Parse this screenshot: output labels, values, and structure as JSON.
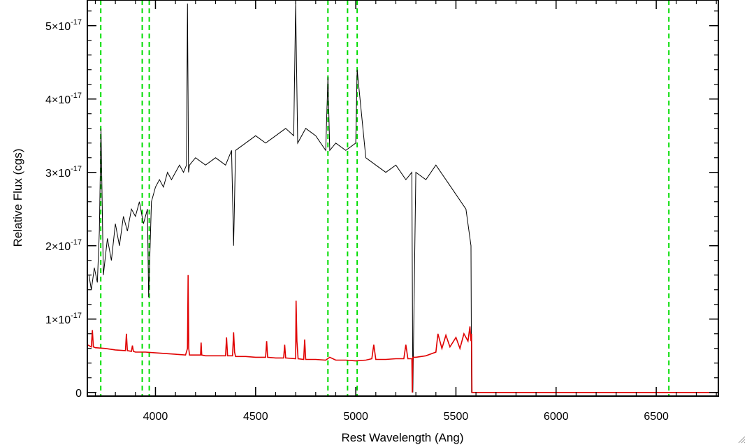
{
  "chart_data": {
    "type": "line",
    "title": "",
    "xlabel": "Rest Wavelength (Ang)",
    "ylabel": "Relative Flux (cgs)",
    "xlim": [
      3660,
      6810
    ],
    "ylim": [
      -5e-19,
      5.35e-17
    ],
    "x_ticks": [
      {
        "value": 4000,
        "label": "4000"
      },
      {
        "value": 4500,
        "label": "4500"
      },
      {
        "value": 5000,
        "label": "5000"
      },
      {
        "value": 5500,
        "label": "5500"
      },
      {
        "value": 6000,
        "label": "6000"
      },
      {
        "value": 6500,
        "label": "6500"
      }
    ],
    "y_ticks": [
      {
        "value": 0,
        "mant": "0",
        "exp": ""
      },
      {
        "value": 1e-17,
        "mant": "1×10",
        "exp": "-17"
      },
      {
        "value": 2e-17,
        "mant": "2×10",
        "exp": "-17"
      },
      {
        "value": 3e-17,
        "mant": "3×10",
        "exp": "-17"
      },
      {
        "value": 4e-17,
        "mant": "4×10",
        "exp": "-17"
      },
      {
        "value": 5e-17,
        "mant": "5×10",
        "exp": "-17"
      }
    ],
    "x_minor_step": 100,
    "y_minor_step": 2e-18,
    "grid": false,
    "vlines": {
      "color": "#00dd00",
      "style": "dashed",
      "x": [
        3727,
        3934,
        3969,
        4861,
        4959,
        5007,
        6563
      ]
    },
    "series": [
      {
        "color": "#000000",
        "x": [
          3668,
          3680,
          3695,
          3710,
          3720,
          3728,
          3740,
          3760,
          3780,
          3800,
          3820,
          3840,
          3860,
          3880,
          3900,
          3920,
          3940,
          3960,
          3966,
          3980,
          4000,
          4020,
          4040,
          4060,
          4080,
          4100,
          4120,
          4140,
          4155,
          4160,
          4165,
          4170,
          4200,
          4250,
          4300,
          4350,
          4380,
          4390,
          4400,
          4450,
          4500,
          4550,
          4600,
          4650,
          4690,
          4700,
          4710,
          4750,
          4800,
          4850,
          4861,
          4870,
          4900,
          4950,
          5000,
          5007,
          5050,
          5100,
          5150,
          5200,
          5250,
          5280,
          5285,
          5300,
          5350,
          5400,
          5450,
          5500,
          5550,
          5575,
          5578,
          5580,
          6810
        ],
        "y": [
          1.6e-17,
          1.4e-17,
          1.7e-17,
          1.5e-17,
          2.2e-17,
          3.6e-17,
          1.6e-17,
          2.1e-17,
          1.8e-17,
          2.3e-17,
          2e-17,
          2.4e-17,
          2.2e-17,
          2.5e-17,
          2.4e-17,
          2.6e-17,
          2.3e-17,
          2.5e-17,
          1.3e-17,
          2.6e-17,
          2.8e-17,
          2.9e-17,
          2.8e-17,
          3e-17,
          2.9e-17,
          3e-17,
          3.1e-17,
          3e-17,
          3.1e-17,
          5.3e-17,
          3e-17,
          3.1e-17,
          3.2e-17,
          3.1e-17,
          3.2e-17,
          3.1e-17,
          3.3e-17,
          2e-17,
          3.3e-17,
          3.4e-17,
          3.5e-17,
          3.4e-17,
          3.5e-17,
          3.6e-17,
          3.5e-17,
          5.3e-17,
          3.4e-17,
          3.6e-17,
          3.5e-17,
          3.3e-17,
          4.3e-17,
          3.3e-17,
          3.4e-17,
          3.3e-17,
          3.4e-17,
          4.4e-17,
          3.2e-17,
          3.1e-17,
          3e-17,
          3.1e-17,
          2.9e-17,
          3e-17,
          0.0,
          3e-17,
          2.9e-17,
          3.1e-17,
          2.9e-17,
          2.7e-17,
          2.5e-17,
          2e-17,
          0.0,
          0.0,
          0.0
        ]
      },
      {
        "color": "#e00000",
        "x": [
          3660,
          3680,
          3685,
          3690,
          3700,
          3750,
          3800,
          3850,
          3855,
          3860,
          3880,
          3885,
          3890,
          3900,
          3950,
          4000,
          4050,
          4100,
          4150,
          4160,
          4163,
          4166,
          4170,
          4200,
          4225,
          4228,
          4231,
          4250,
          4300,
          4350,
          4355,
          4360,
          4385,
          4390,
          4395,
          4400,
          4450,
          4500,
          4550,
          4555,
          4560,
          4600,
          4640,
          4645,
          4650,
          4700,
          4702,
          4706,
          4712,
          4740,
          4745,
          4750,
          4800,
          4850,
          4870,
          4900,
          4950,
          5000,
          5050,
          5080,
          5090,
          5100,
          5150,
          5200,
          5240,
          5250,
          5260,
          5280,
          5282,
          5285,
          5300,
          5350,
          5400,
          5410,
          5430,
          5450,
          5470,
          5500,
          5520,
          5540,
          5560,
          5570,
          5575,
          5578,
          5580,
          6810
        ],
        "y": [
          6.5e-18,
          6.2e-18,
          8.5e-18,
          6.2e-18,
          6.1e-18,
          6e-18,
          5.8e-18,
          5.7e-18,
          8e-18,
          5.7e-18,
          5.6e-18,
          6.4e-18,
          5.6e-18,
          5.5e-18,
          5.5e-18,
          5.4e-18,
          5.3e-18,
          5.2e-18,
          5.1e-18,
          6e-18,
          1.6e-17,
          6e-18,
          5.1e-18,
          5.1e-18,
          5.1e-18,
          6.8e-18,
          5.1e-18,
          5e-18,
          5e-18,
          5e-18,
          7.5e-18,
          5e-18,
          5e-18,
          8.2e-18,
          5.5e-18,
          4.9e-18,
          4.9e-18,
          4.8e-18,
          4.8e-18,
          7e-18,
          4.8e-18,
          4.7e-18,
          4.7e-18,
          6.5e-18,
          4.7e-18,
          4.6e-18,
          1.25e-17,
          7e-18,
          4.6e-18,
          4.5e-18,
          7.2e-18,
          4.5e-18,
          4.5e-18,
          4.4e-18,
          4.8e-18,
          4.4e-18,
          4.4e-18,
          4.3e-18,
          4.4e-18,
          4.6e-18,
          6.5e-18,
          4.5e-18,
          4.5e-18,
          4.6e-18,
          4.6e-18,
          6.5e-18,
          4.6e-18,
          4.6e-18,
          0.0,
          4.8e-18,
          4.8e-18,
          5e-18,
          5.5e-18,
          8e-18,
          6e-18,
          7.8e-18,
          6.2e-18,
          7.5e-18,
          6e-18,
          8e-18,
          7e-18,
          9e-18,
          7e-18,
          8e-18,
          0.0,
          0.0
        ]
      }
    ]
  }
}
